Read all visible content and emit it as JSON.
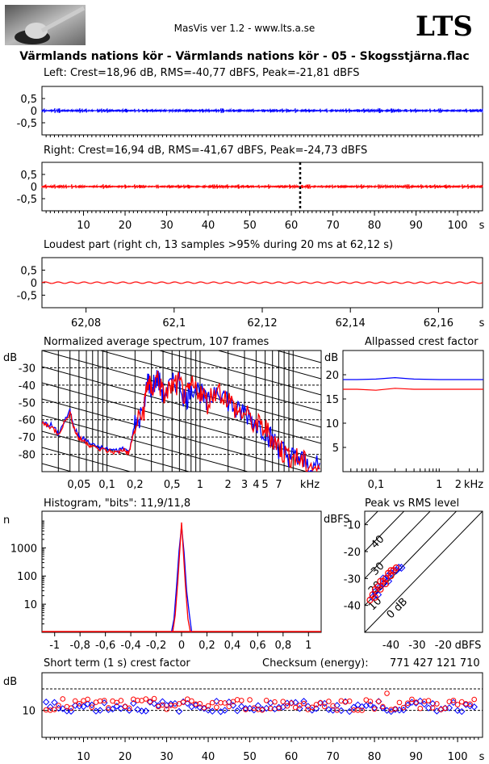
{
  "header": {
    "app_line": "MasVis ver 1.2 - www.lts.a.se",
    "logo_text": "LTS",
    "track_title": "Värmlands nations kör - Värmlands nations kör - 05 - Skogsstjärna.flac"
  },
  "colors": {
    "left": "#0000ff",
    "right": "#ff0000",
    "grid": "#000000"
  },
  "chart_data": [
    {
      "type": "line",
      "title": "Left: Crest=18,96 dB, RMS=-40,77 dBFS, Peak=-21,81 dBFS",
      "xlabel": "",
      "ylabel": "",
      "yticks": [
        "0,5",
        "0",
        "-0,5"
      ],
      "ylim": [
        -1,
        1
      ],
      "xlim": [
        0,
        106
      ],
      "series": [
        {
          "name": "left",
          "peak_envelope": 0.03,
          "color": "#0000ff"
        }
      ]
    },
    {
      "type": "line",
      "title": "Right: Crest=16,94 dB, RMS=-41,67 dBFS, Peak=-24,73 dBFS",
      "xlabel": "s",
      "xticks": [
        "10",
        "20",
        "30",
        "40",
        "50",
        "60",
        "70",
        "80",
        "90",
        "100",
        "s"
      ],
      "xtick_values": [
        10,
        20,
        30,
        40,
        50,
        60,
        70,
        80,
        90,
        100
      ],
      "yticks": [
        "0,5",
        "0",
        "-0,5"
      ],
      "ylim": [
        -1,
        1
      ],
      "xlim": [
        0,
        106
      ],
      "marker_time": 62.12,
      "series": [
        {
          "name": "right",
          "peak_envelope": 0.03,
          "color": "#ff0000"
        }
      ]
    },
    {
      "type": "line",
      "title": "Loudest part (right ch, 13 samples >95% during 20 ms at 62,12 s)",
      "xticks": [
        "62,08",
        "62,1",
        "62,12",
        "62,14",
        "62,16",
        "s"
      ],
      "xtick_values": [
        62.08,
        62.1,
        62.12,
        62.14,
        62.16
      ],
      "yticks": [
        "0,5",
        "0",
        "-0,5"
      ],
      "xlim": [
        62.07,
        62.17
      ],
      "ylim": [
        -1,
        1
      ],
      "series": [
        {
          "name": "right",
          "amplitude": 0.03,
          "cycles": 34,
          "color": "#ff0000"
        }
      ]
    },
    {
      "type": "line",
      "title": "Normalized average spectrum, 107 frames",
      "ylabel": "dB",
      "yticks": [
        "-30",
        "-40",
        "-50",
        "-60",
        "-70",
        "-80"
      ],
      "ytick_values": [
        -30,
        -40,
        -50,
        -60,
        -70,
        -80
      ],
      "xticks": [
        "0,05",
        "0,1",
        "0,2",
        "0,5",
        "1",
        "2",
        "3",
        "4",
        "5",
        "7",
        "kHz"
      ],
      "xtick_values": [
        0.05,
        0.1,
        0.2,
        0.5,
        1,
        2,
        3,
        4,
        5,
        7
      ],
      "xlim": [
        0.02,
        20
      ],
      "ylim": [
        -90,
        -20
      ],
      "x_scale": "log",
      "series": [
        {
          "name": "left",
          "color": "#0000ff",
          "points": [
            [
              0.02,
              -62
            ],
            [
              0.025,
              -63
            ],
            [
              0.03,
              -68
            ],
            [
              0.04,
              -55
            ],
            [
              0.045,
              -65
            ],
            [
              0.05,
              -70
            ],
            [
              0.06,
              -72
            ],
            [
              0.07,
              -75
            ],
            [
              0.1,
              -77
            ],
            [
              0.13,
              -78
            ],
            [
              0.15,
              -76
            ],
            [
              0.17,
              -79
            ],
            [
              0.2,
              -63
            ],
            [
              0.25,
              -55
            ],
            [
              0.27,
              -37
            ],
            [
              0.3,
              -42
            ],
            [
              0.35,
              -36
            ],
            [
              0.4,
              -45
            ],
            [
              0.5,
              -40
            ],
            [
              0.6,
              -38
            ],
            [
              0.7,
              -50
            ],
            [
              0.8,
              -40
            ],
            [
              1,
              -44
            ],
            [
              1.2,
              -52
            ],
            [
              1.5,
              -40
            ],
            [
              2,
              -49
            ],
            [
              2.5,
              -56
            ],
            [
              3,
              -55
            ],
            [
              4,
              -62
            ],
            [
              5,
              -66
            ],
            [
              6,
              -72
            ],
            [
              7,
              -76
            ],
            [
              8,
              -79
            ],
            [
              10,
              -82
            ],
            [
              12,
              -83
            ],
            [
              15,
              -87
            ],
            [
              20,
              -88
            ]
          ]
        },
        {
          "name": "right",
          "color": "#ff0000",
          "points": [
            [
              0.02,
              -62
            ],
            [
              0.025,
              -64
            ],
            [
              0.03,
              -68
            ],
            [
              0.04,
              -56
            ],
            [
              0.045,
              -66
            ],
            [
              0.05,
              -71
            ],
            [
              0.06,
              -73
            ],
            [
              0.07,
              -76
            ],
            [
              0.1,
              -78
            ],
            [
              0.13,
              -79
            ],
            [
              0.15,
              -77
            ],
            [
              0.17,
              -80
            ],
            [
              0.2,
              -65
            ],
            [
              0.25,
              -54
            ],
            [
              0.27,
              -38
            ],
            [
              0.3,
              -43
            ],
            [
              0.35,
              -35
            ],
            [
              0.4,
              -46
            ],
            [
              0.5,
              -41
            ],
            [
              0.6,
              -39
            ],
            [
              0.7,
              -48
            ],
            [
              0.8,
              -41
            ],
            [
              1,
              -43
            ],
            [
              1.2,
              -50
            ],
            [
              1.5,
              -42
            ],
            [
              2,
              -48
            ],
            [
              2.5,
              -55
            ],
            [
              3,
              -57
            ],
            [
              4,
              -63
            ],
            [
              5,
              -65
            ],
            [
              6,
              -71
            ],
            [
              7,
              -75
            ],
            [
              8,
              -80
            ],
            [
              10,
              -81
            ],
            [
              12,
              -84
            ],
            [
              15,
              -86
            ],
            [
              20,
              -89
            ]
          ]
        }
      ]
    },
    {
      "type": "line",
      "title": "Allpassed crest factor",
      "ylabel": "dB",
      "yticks": [
        "20",
        "15",
        "10",
        "5"
      ],
      "ytick_values": [
        20,
        15,
        10,
        5
      ],
      "xticks": [
        "0,1",
        "1",
        "2",
        "kHz"
      ],
      "xtick_values": [
        0.1,
        1,
        2
      ],
      "x_scale": "log",
      "xlim": [
        0.03,
        5
      ],
      "ylim": [
        0,
        25
      ],
      "series": [
        {
          "name": "left",
          "color": "#0000ff",
          "points": [
            [
              0.03,
              19
            ],
            [
              0.05,
              19
            ],
            [
              0.1,
              19.1
            ],
            [
              0.2,
              19.4
            ],
            [
              0.4,
              19.1
            ],
            [
              1,
              19
            ],
            [
              5,
              19
            ]
          ]
        },
        {
          "name": "right",
          "color": "#ff0000",
          "points": [
            [
              0.03,
              17
            ],
            [
              0.05,
              17
            ],
            [
              0.1,
              16.8
            ],
            [
              0.2,
              17.2
            ],
            [
              0.4,
              17
            ],
            [
              1,
              17
            ],
            [
              5,
              17
            ]
          ]
        }
      ]
    },
    {
      "type": "line",
      "title": "Histogram, \"bits\": 11,9/11,8",
      "ylabel": "n",
      "yticks": [
        "1000",
        "100",
        "10"
      ],
      "ytick_values": [
        1000,
        100,
        10
      ],
      "xticks": [
        "-1",
        "-0,8",
        "-0,6",
        "-0,4",
        "-0,2",
        "0",
        "0,2",
        "0,4",
        "0,6",
        "0,8",
        "1"
      ],
      "xtick_values": [
        -1,
        -0.8,
        -0.6,
        -0.4,
        -0.2,
        0,
        0.2,
        0.4,
        0.6,
        0.8,
        1
      ],
      "y_scale": "log",
      "xlim": [
        -1.1,
        1.1
      ],
      "ylim": [
        1,
        20000
      ],
      "series": [
        {
          "name": "left",
          "color": "#0000ff",
          "points": [
            [
              -0.08,
              1
            ],
            [
              -0.06,
              3
            ],
            [
              -0.04,
              40
            ],
            [
              -0.02,
              800
            ],
            [
              0,
              6000
            ],
            [
              0.02,
              700
            ],
            [
              0.04,
              30
            ],
            [
              0.06,
              5
            ],
            [
              0.08,
              1
            ]
          ]
        },
        {
          "name": "right",
          "color": "#ff0000",
          "points": [
            [
              -0.07,
              1
            ],
            [
              -0.05,
              4
            ],
            [
              -0.03,
              60
            ],
            [
              -0.01,
              1500
            ],
            [
              0,
              8000
            ],
            [
              0.01,
              1400
            ],
            [
              0.03,
              50
            ],
            [
              0.05,
              3
            ],
            [
              0.07,
              1
            ]
          ]
        }
      ]
    },
    {
      "type": "scatter",
      "title": "Peak vs RMS level",
      "ylabel": "dBFS",
      "xlabel": "dBFS",
      "yticks": [
        "-10",
        "-20",
        "-30",
        "-40"
      ],
      "ytick_values": [
        -10,
        -20,
        -30,
        -40
      ],
      "xticks": [
        "-40",
        "-30",
        "-20",
        "dBFS"
      ],
      "xtick_values": [
        -40,
        -30,
        -20
      ],
      "crest_lines": [
        "40",
        "30",
        "20",
        "10",
        "0 dB"
      ],
      "xlim": [
        -50,
        -5
      ],
      "ylim": [
        -50,
        -5
      ],
      "series": [
        {
          "name": "left",
          "color": "#0000ff",
          "points": [
            [
              -47,
              -37
            ],
            [
              -46,
              -35
            ],
            [
              -45,
              -33
            ],
            [
              -44,
              -33
            ],
            [
              -43,
              -30
            ],
            [
              -42,
              -30
            ],
            [
              -41,
              -29
            ],
            [
              -40,
              -28
            ],
            [
              -39,
              -27
            ],
            [
              -38,
              -27
            ],
            [
              -37,
              -26
            ],
            [
              -36,
              -26
            ],
            [
              -45,
              -36
            ],
            [
              -43,
              -32
            ],
            [
              -41,
              -31
            ]
          ]
        },
        {
          "name": "right",
          "color": "#ff0000",
          "points": [
            [
              -48,
              -38
            ],
            [
              -47,
              -36
            ],
            [
              -46,
              -34
            ],
            [
              -45,
              -33
            ],
            [
              -44,
              -31
            ],
            [
              -43,
              -31
            ],
            [
              -42,
              -30
            ],
            [
              -41,
              -28
            ],
            [
              -40,
              -29
            ],
            [
              -39,
              -27
            ],
            [
              -38,
              -26
            ],
            [
              -46,
              -37
            ],
            [
              -44,
              -34
            ],
            [
              -42,
              -32
            ],
            [
              -40,
              -27
            ]
          ]
        }
      ]
    },
    {
      "type": "scatter",
      "title": "Short term (1 s) crest factor",
      "ylabel": "dB",
      "yticks": [
        "10"
      ],
      "ytick_values": [
        10
      ],
      "xticks": [
        "10",
        "20",
        "30",
        "40",
        "50",
        "60",
        "70",
        "80",
        "90",
        "100",
        "s"
      ],
      "xtick_values": [
        10,
        20,
        30,
        40,
        50,
        60,
        70,
        80,
        90,
        100
      ],
      "xlim": [
        0,
        106
      ],
      "ylim": [
        0,
        24
      ],
      "dashed_levels": [
        10,
        18
      ],
      "series": [
        {
          "name": "left",
          "color": "#0000ff",
          "base": 11.5,
          "spread": 2.0,
          "count": 104
        },
        {
          "name": "right",
          "color": "#ff0000",
          "base": 12.2,
          "spread": 2.2,
          "count": 104
        }
      ]
    }
  ],
  "checksum": {
    "label": "Checksum (energy):",
    "value": "771 427 121 710"
  }
}
